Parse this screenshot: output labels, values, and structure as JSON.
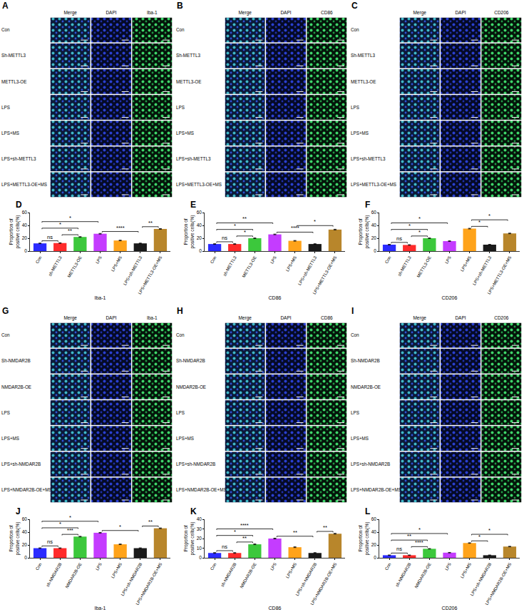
{
  "image_panels": [
    {
      "letter": "A",
      "columns": [
        "Merge",
        "DAPI",
        "Iba-1"
      ],
      "rows": [
        "Con",
        "Sh-METTL3",
        "METTL3-OE",
        "LPS",
        "LPS+MS",
        "LPS+sh-METTL3",
        "LPS+METTL3-OE+MS"
      ]
    },
    {
      "letter": "B",
      "columns": [
        "Merge",
        "DAPI",
        "CD86"
      ],
      "rows": [
        "Con",
        "Sh-METTL3",
        "METTL3-OE",
        "LPS",
        "LPS+MS",
        "LPS+sh-METTL3",
        "LPS+METTL3-OE+MS"
      ]
    },
    {
      "letter": "C",
      "columns": [
        "Merge",
        "DAPI",
        "CD206"
      ],
      "rows": [
        "Con",
        "Sh-METTL3",
        "METTL3-OE",
        "LPS",
        "LPS+MS",
        "LPS+sh-METTL3",
        "LPS+METTL3-OE+MS"
      ]
    },
    {
      "letter": "G",
      "columns": [
        "Merge",
        "DAPI",
        "Iba-1"
      ],
      "rows": [
        "Con",
        "Sh-NMDAR2B",
        "NMDAR2B-OE",
        "LPS",
        "LPS+MS",
        "LPS+sh-NMDAR2B",
        "LPS+NMDAR2B-OE+MS"
      ]
    },
    {
      "letter": "H",
      "columns": [
        "Merge",
        "DAPI",
        "CD86"
      ],
      "rows": [
        "Con",
        "Sh-NMDAR2B",
        "NMDAR2B-OE",
        "LPS",
        "LPS+MS",
        "LPS+sh-NMDAR2B",
        "LPS+NMDAR2B-OE+MS"
      ]
    },
    {
      "letter": "I",
      "columns": [
        "Merge",
        "DAPI",
        "CD206"
      ],
      "rows": [
        "Con",
        "Sh-NMDAR2B",
        "NMDAR2B-OE",
        "LPS",
        "LPS+MS",
        "LPS+sh-NMDAR2B",
        "LPS+NMDAR2B-OE+MS"
      ]
    }
  ],
  "chart_data": [
    {
      "letter": "D",
      "type": "bar",
      "xlabel": "Iba-1",
      "ylabel": "Proportion of positive cells(%)",
      "categories": [
        "Con",
        "sh-METTL3",
        "METTL3-OE",
        "LPS",
        "LPS+MS",
        "LPS+sh-METTL3",
        "LPS+METTL3-OE+MS"
      ],
      "values": [
        12,
        12.5,
        22,
        27,
        16.5,
        12,
        34.5
      ],
      "errors": [
        0.5,
        0.5,
        0.5,
        0.5,
        0.5,
        0.5,
        0.5
      ],
      "colors": [
        "#2b2bff",
        "#ff2b2b",
        "#3cc83c",
        "#c43cff",
        "#ffa31a",
        "#1a1a1a",
        "#b8862b"
      ],
      "ylim": [
        0,
        60
      ],
      "yticks": [
        0,
        20,
        40,
        60
      ],
      "annotations": [
        {
          "from": 0,
          "to": 1,
          "text": "ns"
        },
        {
          "from": 0,
          "to": 2,
          "text": "*"
        },
        {
          "from": 0,
          "to": 3,
          "text": "*"
        },
        {
          "from": 1,
          "to": 2,
          "text": "**"
        },
        {
          "from": 3,
          "to": 5,
          "text": "****"
        },
        {
          "from": 5,
          "to": 6,
          "text": "**"
        }
      ]
    },
    {
      "letter": "E",
      "type": "bar",
      "xlabel": "CD86",
      "ylabel": "Proportion of positive cells(%)",
      "categories": [
        "Con",
        "sh-METTL3",
        "METTL3-OE",
        "LPS",
        "LPS+MS",
        "LPS+sh-METTL3",
        "LPS+METTL3-OE+MS"
      ],
      "values": [
        11,
        11,
        20,
        26,
        16,
        11,
        33.5
      ],
      "errors": [
        0.5,
        0.5,
        0.5,
        0.5,
        0.5,
        0.5,
        0.5
      ],
      "colors": [
        "#2b2bff",
        "#ff2b2b",
        "#3cc83c",
        "#c43cff",
        "#ffa31a",
        "#1a1a1a",
        "#b8862b"
      ],
      "ylim": [
        0,
        60
      ],
      "yticks": [
        0,
        20,
        40,
        60
      ],
      "annotations": [
        {
          "from": 0,
          "to": 1,
          "text": "ns"
        },
        {
          "from": 0,
          "to": 2,
          "text": "*"
        },
        {
          "from": 0,
          "to": 3,
          "text": "**"
        },
        {
          "from": 1,
          "to": 2,
          "text": "*"
        },
        {
          "from": 3,
          "to": 5,
          "text": "****"
        },
        {
          "from": 4,
          "to": 6,
          "text": "*"
        }
      ]
    },
    {
      "letter": "F",
      "type": "bar",
      "xlabel": "CD206",
      "ylabel": "Proportion of positive cells(%)",
      "categories": [
        "Con",
        "sh-METTL3",
        "METTL3-OE",
        "LPS",
        "LPS+MS",
        "LPS+sh-METTL3",
        "LPS+METTL3-OE+MS"
      ],
      "values": [
        10,
        9.5,
        20,
        15.5,
        35,
        10,
        27.5
      ],
      "errors": [
        0.5,
        0.5,
        0.5,
        0.5,
        0.5,
        0.5,
        0.5
      ],
      "colors": [
        "#2b2bff",
        "#ff2b2b",
        "#3cc83c",
        "#c43cff",
        "#ffa31a",
        "#1a1a1a",
        "#b8862b"
      ],
      "ylim": [
        0,
        60
      ],
      "yticks": [
        0,
        20,
        40,
        60
      ],
      "annotations": [
        {
          "from": 0,
          "to": 1,
          "text": "ns"
        },
        {
          "from": 0,
          "to": 2,
          "text": "*"
        },
        {
          "from": 0,
          "to": 3,
          "text": "*"
        },
        {
          "from": 1,
          "to": 2,
          "text": "*"
        },
        {
          "from": 4,
          "to": 5,
          "text": "*"
        },
        {
          "from": 4,
          "to": 6,
          "text": "*"
        }
      ]
    },
    {
      "letter": "J",
      "type": "bar",
      "xlabel": "Iba-1",
      "ylabel": "Proportion of positive cells(%)",
      "categories": [
        "Con",
        "sh-NMDAR2B",
        "NMDAR2B-OE",
        "LPS",
        "LPS+MS",
        "LPS+sh-NMDAR2B",
        "LPS+NMDAR2B-OE+MS"
      ],
      "values": [
        15,
        15,
        33,
        39,
        21,
        15,
        46
      ],
      "errors": [
        0.5,
        0.5,
        0.5,
        0.5,
        0.5,
        0.5,
        0.5
      ],
      "colors": [
        "#2b2bff",
        "#ff2b2b",
        "#3cc83c",
        "#c43cff",
        "#ffa31a",
        "#1a1a1a",
        "#b8862b"
      ],
      "ylim": [
        0,
        60
      ],
      "yticks": [
        0,
        20,
        40,
        60
      ],
      "annotations": [
        {
          "from": 0,
          "to": 1,
          "text": "ns"
        },
        {
          "from": 0,
          "to": 2,
          "text": "*"
        },
        {
          "from": 0,
          "to": 3,
          "text": "*"
        },
        {
          "from": 1,
          "to": 2,
          "text": "***"
        },
        {
          "from": 3,
          "to": 5,
          "text": "*"
        },
        {
          "from": 5,
          "to": 6,
          "text": "**"
        }
      ]
    },
    {
      "letter": "K",
      "type": "bar",
      "xlabel": "CD86",
      "ylabel": "Proportion of positive cells(%)",
      "categories": [
        "Con",
        "sh-NMDAR2B",
        "NMDAR2B-OE",
        "LPS",
        "LPS+MS",
        "LPS+sh-NMDAR2B",
        "LPS+NMDAR2B-OE+MS"
      ],
      "values": [
        5,
        5,
        14,
        20,
        11,
        5,
        25
      ],
      "errors": [
        0.4,
        0.4,
        0.4,
        0.4,
        0.4,
        0.4,
        0.4
      ],
      "colors": [
        "#2b2bff",
        "#ff2b2b",
        "#3cc83c",
        "#c43cff",
        "#ffa31a",
        "#1a1a1a",
        "#b8862b"
      ],
      "ylim": [
        0,
        40
      ],
      "yticks": [
        0,
        10,
        20,
        30,
        40
      ],
      "annotations": [
        {
          "from": 0,
          "to": 1,
          "text": "ns"
        },
        {
          "from": 0,
          "to": 2,
          "text": "*"
        },
        {
          "from": 0,
          "to": 3,
          "text": "****"
        },
        {
          "from": 1,
          "to": 2,
          "text": "**"
        },
        {
          "from": 3,
          "to": 5,
          "text": "**"
        },
        {
          "from": 5,
          "to": 6,
          "text": "**"
        }
      ]
    },
    {
      "letter": "L",
      "type": "bar",
      "xlabel": "CD206",
      "ylabel": "Proportion of positive cells(%)",
      "categories": [
        "Con",
        "sh-NMDAR2B",
        "NMDAR2B-OE",
        "LPS",
        "LPS+MS",
        "LPS+sh-NMDAR2B",
        "LPS+NMDAR2B-OE+MS"
      ],
      "values": [
        4,
        4,
        14,
        8,
        23,
        4,
        17.5
      ],
      "errors": [
        0.4,
        0.4,
        0.4,
        0.4,
        0.4,
        0.4,
        0.4
      ],
      "colors": [
        "#2b2bff",
        "#ff2b2b",
        "#3cc83c",
        "#c43cff",
        "#ffa31a",
        "#1a1a1a",
        "#b8862b"
      ],
      "ylim": [
        0,
        60
      ],
      "yticks": [
        0,
        20,
        40,
        60
      ],
      "annotations": [
        {
          "from": 0,
          "to": 1,
          "text": "ns"
        },
        {
          "from": 0,
          "to": 2,
          "text": "**"
        },
        {
          "from": 0,
          "to": 3,
          "text": "*"
        },
        {
          "from": 1,
          "to": 2,
          "text": "****"
        },
        {
          "from": 4,
          "to": 5,
          "text": "*"
        },
        {
          "from": 4,
          "to": 6,
          "text": "*"
        }
      ]
    }
  ]
}
